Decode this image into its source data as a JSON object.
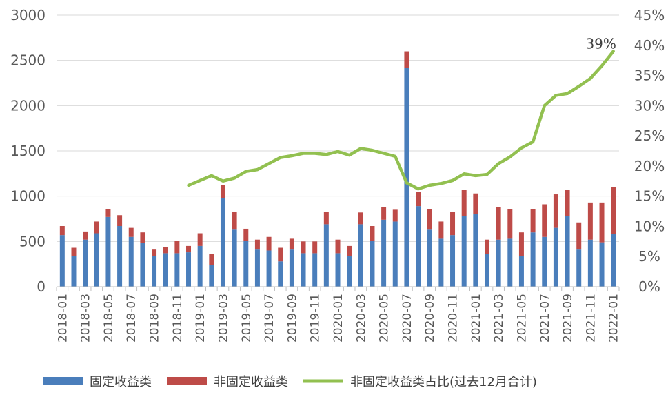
{
  "chart_data": {
    "type": "bar",
    "stacked": true,
    "categories": [
      "2018-01",
      "2018-02",
      "2018-03",
      "2018-04",
      "2018-05",
      "2018-06",
      "2018-07",
      "2018-08",
      "2018-09",
      "2018-10",
      "2018-11",
      "2018-12",
      "2019-01",
      "2019-02",
      "2019-03",
      "2019-04",
      "2019-05",
      "2019-06",
      "2019-07",
      "2019-08",
      "2019-09",
      "2019-10",
      "2019-11",
      "2019-12",
      "2020-01",
      "2020-02",
      "2020-03",
      "2020-04",
      "2020-05",
      "2020-06",
      "2020-07",
      "2020-08",
      "2020-09",
      "2020-10",
      "2020-11",
      "2020-12",
      "2021-01",
      "2021-02",
      "2021-03",
      "2021-04",
      "2021-05",
      "2021-06",
      "2021-07",
      "2021-08",
      "2021-09",
      "2021-10",
      "2021-11",
      "2021-12",
      "2022-01"
    ],
    "x_tick_labels": [
      "2018-01",
      "2018-03",
      "2018-05",
      "2018-07",
      "2018-09",
      "2018-11",
      "2019-01",
      "2019-03",
      "2019-05",
      "2019-07",
      "2019-09",
      "2019-11",
      "2020-01",
      "2020-03",
      "2020-05",
      "2020-07",
      "2020-09",
      "2020-11",
      "2021-01",
      "2021-03",
      "2021-05",
      "2021-07",
      "2021-09",
      "2021-11",
      "2022-01"
    ],
    "series": [
      {
        "name": "固定收益类",
        "color": "#4a7ebb",
        "axis": "left",
        "values": [
          570,
          340,
          520,
          590,
          770,
          670,
          550,
          480,
          340,
          370,
          370,
          380,
          450,
          240,
          980,
          630,
          510,
          410,
          400,
          280,
          410,
          370,
          370,
          690,
          370,
          340,
          690,
          510,
          740,
          720,
          2420,
          890,
          630,
          530,
          570,
          780,
          800,
          360,
          520,
          530,
          340,
          600,
          550,
          650,
          780,
          410,
          520,
          490,
          580
        ]
      },
      {
        "name": "非固定收益类",
        "color": "#be4b48",
        "axis": "left",
        "values": [
          100,
          90,
          90,
          130,
          90,
          120,
          100,
          120,
          70,
          70,
          140,
          70,
          140,
          120,
          140,
          200,
          130,
          110,
          150,
          150,
          120,
          130,
          130,
          140,
          150,
          110,
          130,
          160,
          140,
          130,
          180,
          160,
          230,
          190,
          260,
          290,
          230,
          160,
          360,
          330,
          260,
          260,
          360,
          370,
          290,
          300,
          410,
          440,
          520
        ]
      },
      {
        "name": "非固定收益类占比(过去12月合计)",
        "color": "#92c050",
        "type": "line",
        "axis": "right",
        "values": [
          null,
          null,
          null,
          null,
          null,
          null,
          null,
          null,
          null,
          null,
          null,
          16.8,
          17.6,
          18.4,
          17.5,
          18.0,
          19.1,
          19.4,
          20.4,
          21.4,
          21.7,
          22.1,
          22.1,
          21.9,
          22.4,
          21.8,
          22.9,
          22.6,
          22.1,
          21.6,
          17.2,
          16.2,
          16.8,
          17.1,
          17.6,
          18.7,
          18.4,
          18.6,
          20.4,
          21.5,
          23.0,
          24.0,
          30.0,
          31.7,
          32.0,
          33.2,
          34.5,
          36.6,
          39.0
        ]
      }
    ],
    "ylim": [
      0,
      3000
    ],
    "y_ticks": [
      0,
      500,
      1000,
      1500,
      2000,
      2500,
      3000
    ],
    "y2lim": [
      0,
      45
    ],
    "y2_ticks": [
      "0%",
      "5%",
      "10%",
      "15%",
      "20%",
      "25%",
      "30%",
      "35%",
      "40%",
      "45%"
    ],
    "annotation": "39%",
    "grid": "horizontal",
    "legend_position": "bottom"
  }
}
